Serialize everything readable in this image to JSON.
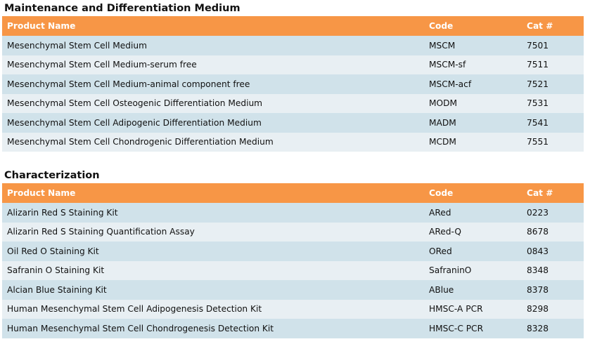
{
  "sections": [
    {
      "title": "Maintenance and Differentiation Medium",
      "headers": [
        "Product Name",
        "Code",
        "Cat #"
      ],
      "rows": [
        [
          "Mesenchymal Stem Cell Medium",
          "MSCM",
          "7501"
        ],
        [
          "Mesenchymal Stem Cell Medium-serum free",
          "MSCM-sf",
          "7511"
        ],
        [
          "Mesenchymal Stem Cell Medium-animal component free",
          "MSCM-acf",
          "7521"
        ],
        [
          "Mesenchymal Stem Cell Osteogenic Differentiation Medium",
          "MODM",
          "7531"
        ],
        [
          "Mesenchymal Stem Cell Adipogenic Differentiation Medium",
          "MADM",
          "7541"
        ],
        [
          "Mesenchymal Stem Cell Chondrogenic Differentiation Medium",
          "MCDM",
          "7551"
        ]
      ]
    },
    {
      "title": "Characterization",
      "headers": [
        "Product Name",
        "Code",
        "Cat #"
      ],
      "rows": [
        [
          "Alizarin Red S Staining Kit",
          "ARed",
          "0223"
        ],
        [
          "Alizarin Red S Staining Quantification Assay",
          "ARed-Q",
          "8678"
        ],
        [
          "Oil Red O Staining Kit",
          "ORed",
          "0843"
        ],
        [
          "Safranin O Staining Kit",
          "SafraninO",
          "8348"
        ],
        [
          "Alcian Blue Staining Kit",
          "ABlue",
          "8378"
        ],
        [
          "Human Mesenchymal Stem Cell Adipogenesis Detection Kit",
          "HMSC-A PCR",
          "8298"
        ],
        [
          "Human Mesenchymal Stem Cell Chondrogenesis Detection Kit",
          "HMSC-C PCR",
          "8328"
        ]
      ]
    }
  ],
  "colors": {
    "header": "#F79646",
    "row_odd": "#D0E2EA",
    "row_even": "#E8EFF3"
  }
}
